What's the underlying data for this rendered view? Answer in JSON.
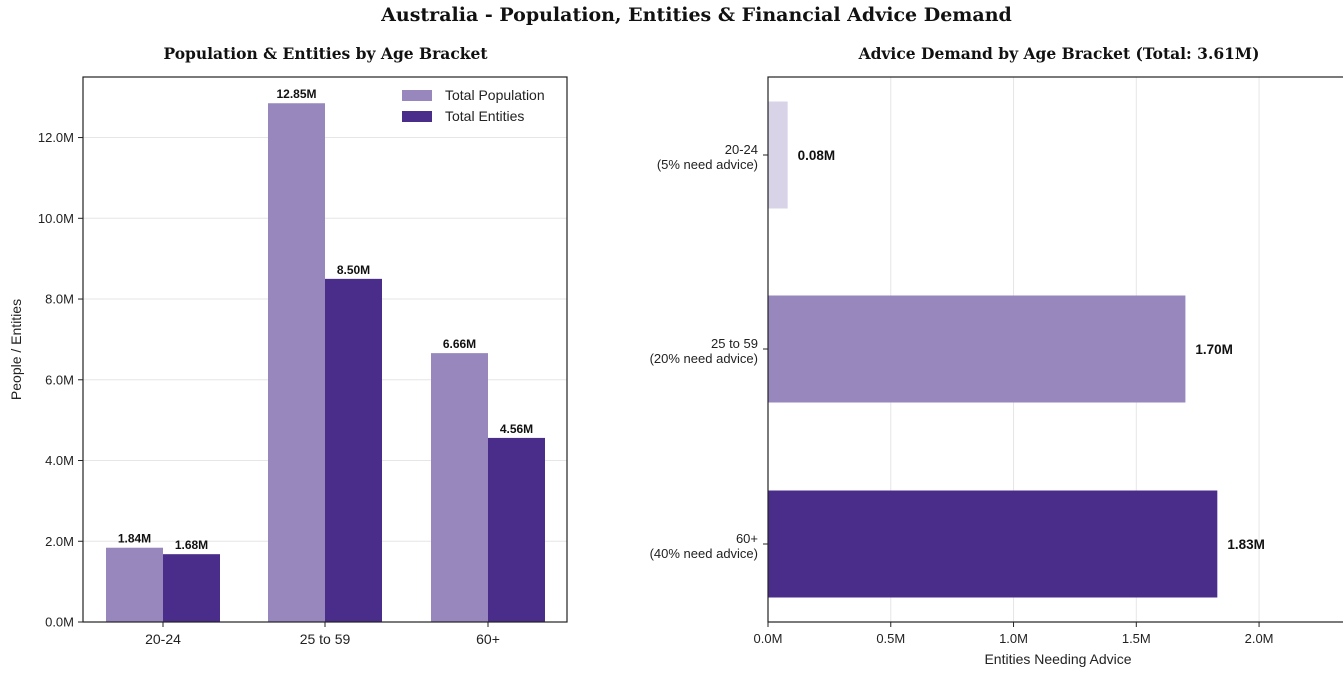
{
  "figure": {
    "title": "Australia - Population, Entities & Financial Advice Demand"
  },
  "colors": {
    "population": "#9787bd",
    "entities": "#4a2d8a",
    "light": "#d9d3e8"
  },
  "chart_data": [
    {
      "type": "bar",
      "title": "Population & Entities by Age Bracket",
      "xlabel": "",
      "ylabel": "People / Entities",
      "categories": [
        "20-24",
        "25 to 59",
        "60+"
      ],
      "series": [
        {
          "name": "Total Population",
          "values": [
            1.84,
            12.85,
            6.66
          ],
          "labels": [
            "1.84M",
            "12.85M",
            "6.66M"
          ]
        },
        {
          "name": "Total Entities",
          "values": [
            1.68,
            8.5,
            4.56
          ],
          "labels": [
            "1.68M",
            "8.50M",
            "4.56M"
          ]
        }
      ],
      "ylim": [
        0,
        13.5
      ],
      "yticks": [
        0,
        2,
        4,
        6,
        8,
        10,
        12
      ],
      "ytick_labels": [
        "0.0M",
        "2.0M",
        "4.0M",
        "6.0M",
        "8.0M",
        "10.0M",
        "12.0M"
      ],
      "grid": "horizontal",
      "legend": "top-right"
    },
    {
      "type": "bar",
      "orientation": "horizontal",
      "title": "Advice Demand by Age Bracket  (Total: 3.61M)",
      "xlabel": "Entities Needing Advice",
      "ylabel": "",
      "categories": [
        [
          "20-24",
          "(5% need advice)"
        ],
        [
          "25 to 59",
          "(20% need advice)"
        ],
        [
          "60+",
          "(40% need advice)"
        ]
      ],
      "values": [
        0.08,
        1.7,
        1.83
      ],
      "labels": [
        "0.08M",
        "1.70M",
        "1.83M"
      ],
      "xlim": [
        0,
        2.35
      ],
      "xticks": [
        0,
        0.5,
        1.0,
        1.5,
        2.0
      ],
      "xtick_labels": [
        "0.0M",
        "0.5M",
        "1.0M",
        "1.5M",
        "2.0M"
      ],
      "grid": "vertical"
    }
  ]
}
